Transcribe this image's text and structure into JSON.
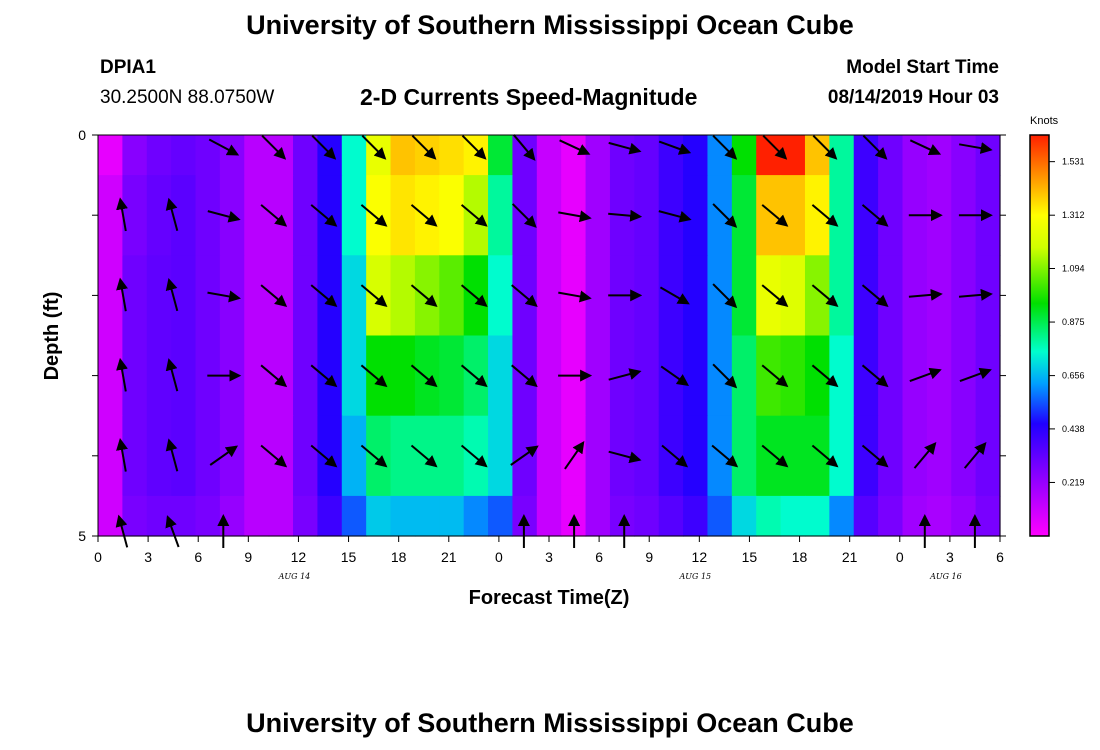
{
  "header": {
    "title": "University of Southern Mississippi Ocean Cube",
    "station": "DPIA1",
    "coords": "30.2500N 88.0750W",
    "chart_title": "2-D Currents Speed-Magnitude",
    "start_label": "Model Start Time",
    "start_value": "08/14/2019 Hour 03"
  },
  "footer": {
    "title": "University of Southern Mississippi Ocean Cube"
  },
  "chart_data": {
    "type": "heatmap",
    "title": "2-D Currents Speed-Magnitude",
    "xlabel": "Forecast Time(Z)",
    "ylabel": "Depth (ft)",
    "x_start_hour": 0,
    "x_hours_span": 54,
    "ylim": [
      0,
      5
    ],
    "y_ticks": [
      "0",
      "5"
    ],
    "x_tick_labels": [
      "0",
      "3",
      "6",
      "9",
      "12",
      "15",
      "18",
      "21",
      "0",
      "3",
      "6",
      "9",
      "12",
      "15",
      "18",
      "21",
      "0",
      "3",
      "6"
    ],
    "date_labels": [
      {
        "text": "AUG 14",
        "hour": 12
      },
      {
        "text": "AUG 15",
        "hour": 36
      },
      {
        "text": "AUG 16",
        "hour": 51
      }
    ],
    "colorbar": {
      "unit": "Knots",
      "min": 0,
      "max": 1.64,
      "ticks": [
        "0.219",
        "0.438",
        "0.656",
        "0.875",
        "1.094",
        "1.312",
        "1.531"
      ]
    },
    "depth_bins": [
      "0-0.5",
      "0.5-1.5",
      "1.5-2.5",
      "2.5-3.5",
      "3.5-4.5",
      "4.5-5"
    ],
    "speed_rows": [
      [
        0.05,
        0.25,
        0.3,
        0.32,
        0.3,
        0.25,
        0.15,
        0.15,
        0.3,
        0.45,
        0.75,
        1.25,
        1.4,
        1.38,
        1.36,
        1.33,
        0.9,
        0.3,
        0.12,
        0.05,
        0.2,
        0.3,
        0.32,
        0.4,
        0.45,
        0.6,
        0.95,
        1.7,
        1.7,
        1.4,
        0.8,
        0.4,
        0.3,
        0.22,
        0.2,
        0.25,
        0.3
      ],
      [
        0.1,
        0.28,
        0.32,
        0.34,
        0.3,
        0.25,
        0.15,
        0.15,
        0.3,
        0.45,
        0.75,
        1.3,
        1.35,
        1.33,
        1.3,
        1.15,
        0.8,
        0.3,
        0.12,
        0.05,
        0.2,
        0.3,
        0.32,
        0.4,
        0.45,
        0.6,
        0.9,
        1.4,
        1.4,
        1.33,
        0.8,
        0.4,
        0.3,
        0.22,
        0.2,
        0.25,
        0.3
      ],
      [
        0.1,
        0.3,
        0.33,
        0.34,
        0.3,
        0.25,
        0.15,
        0.15,
        0.3,
        0.45,
        0.7,
        1.2,
        1.15,
        1.1,
        1.05,
        0.95,
        0.75,
        0.3,
        0.12,
        0.05,
        0.2,
        0.3,
        0.32,
        0.4,
        0.45,
        0.6,
        0.9,
        1.25,
        1.22,
        1.1,
        0.8,
        0.4,
        0.3,
        0.22,
        0.2,
        0.25,
        0.3
      ],
      [
        0.1,
        0.3,
        0.33,
        0.34,
        0.3,
        0.25,
        0.15,
        0.15,
        0.3,
        0.45,
        0.7,
        0.95,
        0.95,
        0.92,
        0.9,
        0.85,
        0.7,
        0.3,
        0.12,
        0.05,
        0.2,
        0.3,
        0.32,
        0.4,
        0.45,
        0.6,
        0.85,
        1.02,
        1.0,
        0.95,
        0.75,
        0.4,
        0.3,
        0.22,
        0.2,
        0.25,
        0.3
      ],
      [
        0.1,
        0.3,
        0.33,
        0.34,
        0.3,
        0.25,
        0.15,
        0.15,
        0.3,
        0.45,
        0.65,
        0.85,
        0.82,
        0.82,
        0.82,
        0.78,
        0.7,
        0.3,
        0.12,
        0.05,
        0.2,
        0.3,
        0.32,
        0.4,
        0.45,
        0.6,
        0.85,
        0.92,
        0.92,
        0.92,
        0.75,
        0.4,
        0.3,
        0.22,
        0.2,
        0.25,
        0.3
      ],
      [
        0.1,
        0.28,
        0.3,
        0.3,
        0.28,
        0.22,
        0.15,
        0.15,
        0.28,
        0.4,
        0.55,
        0.68,
        0.66,
        0.66,
        0.66,
        0.6,
        0.55,
        0.28,
        0.12,
        0.05,
        0.2,
        0.28,
        0.3,
        0.35,
        0.4,
        0.55,
        0.7,
        0.78,
        0.75,
        0.75,
        0.6,
        0.35,
        0.28,
        0.2,
        0.18,
        0.22,
        0.28
      ]
    ],
    "arrow_depths": [
      0.15,
      1.0,
      2.0,
      3.0,
      4.0,
      4.95
    ],
    "arrow_hours": [
      3,
      6,
      9,
      12,
      15,
      18,
      21,
      24,
      27,
      30,
      33,
      36,
      39,
      42,
      45,
      48,
      51,
      54
    ],
    "arrow_angles_deg": [
      [
        null,
        null,
        28,
        45,
        45,
        45,
        45,
        45,
        50,
        25,
        15,
        20,
        45,
        45,
        45,
        45,
        25,
        10
      ],
      [
        -100,
        -105,
        15,
        40,
        40,
        40,
        40,
        40,
        45,
        10,
        5,
        15,
        45,
        40,
        40,
        40,
        0,
        0
      ],
      [
        -100,
        -105,
        10,
        40,
        40,
        40,
        40,
        40,
        40,
        10,
        0,
        30,
        45,
        40,
        40,
        40,
        -5,
        -5
      ],
      [
        -100,
        -105,
        0,
        40,
        40,
        40,
        40,
        40,
        40,
        0,
        -15,
        35,
        45,
        40,
        40,
        40,
        -20,
        -20
      ],
      [
        -100,
        -105,
        -35,
        40,
        40,
        40,
        40,
        40,
        -35,
        -55,
        15,
        40,
        40,
        40,
        40,
        40,
        -50,
        -50
      ],
      [
        -105,
        -110,
        -90,
        null,
        null,
        null,
        null,
        null,
        -90,
        -90,
        -90,
        null,
        null,
        null,
        null,
        null,
        -90,
        -90
      ]
    ]
  }
}
